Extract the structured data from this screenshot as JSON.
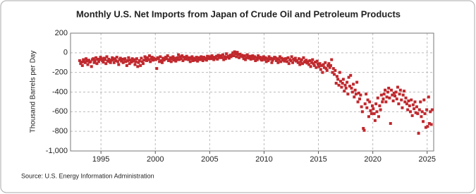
{
  "chart_data": {
    "type": "scatter",
    "title": "Monthly U.S. Net Imports from Japan of Crude Oil and Petroleum Products",
    "y_label": "Thousand Barrels per Day",
    "source": "Source: U.S. Energy Information Administration",
    "color": "#c0282d",
    "grid": true,
    "xlim": [
      1992.2,
      2025.6
    ],
    "xticks": [
      1995,
      2000,
      2005,
      2010,
      2015,
      2020,
      2025
    ],
    "ylim": [
      -1000,
      200
    ],
    "yticks": [
      200,
      0,
      -200,
      -400,
      -600,
      -800,
      {
        "value": -1000,
        "label": "-1,000"
      }
    ],
    "x": [
      1993.04,
      1993.13,
      1993.21,
      1993.29,
      1993.38,
      1993.46,
      1993.54,
      1993.63,
      1993.71,
      1993.79,
      1993.88,
      1993.96,
      1994.04,
      1994.13,
      1994.21,
      1994.29,
      1994.38,
      1994.46,
      1994.54,
      1994.63,
      1994.71,
      1994.79,
      1994.88,
      1994.96,
      1995.04,
      1995.13,
      1995.21,
      1995.29,
      1995.38,
      1995.46,
      1995.54,
      1995.63,
      1995.71,
      1995.79,
      1995.88,
      1995.96,
      1996.04,
      1996.13,
      1996.21,
      1996.29,
      1996.38,
      1996.46,
      1996.54,
      1996.63,
      1996.71,
      1996.79,
      1996.88,
      1996.96,
      1997.04,
      1997.13,
      1997.21,
      1997.29,
      1997.38,
      1997.46,
      1997.54,
      1997.63,
      1997.71,
      1997.79,
      1997.88,
      1997.96,
      1998.04,
      1998.13,
      1998.21,
      1998.29,
      1998.38,
      1998.46,
      1998.54,
      1998.63,
      1998.71,
      1998.79,
      1998.88,
      1998.96,
      1999.04,
      1999.13,
      1999.21,
      1999.29,
      1999.38,
      1999.46,
      1999.54,
      1999.63,
      1999.71,
      1999.79,
      1999.88,
      1999.96,
      2000.04,
      2000.13,
      2000.21,
      2000.29,
      2000.38,
      2000.46,
      2000.54,
      2000.63,
      2000.71,
      2000.79,
      2000.88,
      2000.96,
      2001.04,
      2001.13,
      2001.21,
      2001.29,
      2001.38,
      2001.46,
      2001.54,
      2001.63,
      2001.71,
      2001.79,
      2001.88,
      2001.96,
      2002.04,
      2002.13,
      2002.21,
      2002.29,
      2002.38,
      2002.46,
      2002.54,
      2002.63,
      2002.71,
      2002.79,
      2002.88,
      2002.96,
      2003.04,
      2003.13,
      2003.21,
      2003.29,
      2003.38,
      2003.46,
      2003.54,
      2003.63,
      2003.71,
      2003.79,
      2003.88,
      2003.96,
      2004.04,
      2004.13,
      2004.21,
      2004.29,
      2004.38,
      2004.46,
      2004.54,
      2004.63,
      2004.71,
      2004.79,
      2004.88,
      2004.96,
      2005.04,
      2005.13,
      2005.21,
      2005.29,
      2005.38,
      2005.46,
      2005.54,
      2005.63,
      2005.71,
      2005.79,
      2005.88,
      2005.96,
      2006.04,
      2006.13,
      2006.21,
      2006.29,
      2006.38,
      2006.46,
      2006.54,
      2006.63,
      2006.71,
      2006.79,
      2006.88,
      2006.96,
      2007.04,
      2007.13,
      2007.21,
      2007.29,
      2007.38,
      2007.46,
      2007.54,
      2007.63,
      2007.71,
      2007.79,
      2007.88,
      2007.96,
      2008.04,
      2008.13,
      2008.21,
      2008.29,
      2008.38,
      2008.46,
      2008.54,
      2008.63,
      2008.71,
      2008.79,
      2008.88,
      2008.96,
      2009.04,
      2009.13,
      2009.21,
      2009.29,
      2009.38,
      2009.46,
      2009.54,
      2009.63,
      2009.71,
      2009.79,
      2009.88,
      2009.96,
      2010.04,
      2010.13,
      2010.21,
      2010.29,
      2010.38,
      2010.46,
      2010.54,
      2010.63,
      2010.71,
      2010.79,
      2010.88,
      2010.96,
      2011.04,
      2011.13,
      2011.21,
      2011.29,
      2011.38,
      2011.46,
      2011.54,
      2011.63,
      2011.71,
      2011.79,
      2011.88,
      2011.96,
      2012.04,
      2012.13,
      2012.21,
      2012.29,
      2012.38,
      2012.46,
      2012.54,
      2012.63,
      2012.71,
      2012.79,
      2012.88,
      2012.96,
      2013.04,
      2013.13,
      2013.21,
      2013.29,
      2013.38,
      2013.46,
      2013.54,
      2013.63,
      2013.71,
      2013.79,
      2013.88,
      2013.96,
      2014.04,
      2014.13,
      2014.21,
      2014.29,
      2014.38,
      2014.46,
      2014.54,
      2014.63,
      2014.71,
      2014.79,
      2014.88,
      2014.96,
      2015.04,
      2015.13,
      2015.21,
      2015.29,
      2015.38,
      2015.46,
      2015.54,
      2015.63,
      2015.71,
      2015.79,
      2015.88,
      2015.96,
      2016.04,
      2016.13,
      2016.21,
      2016.29,
      2016.38,
      2016.46,
      2016.54,
      2016.63,
      2016.71,
      2016.79,
      2016.88,
      2016.96,
      2017.04,
      2017.13,
      2017.21,
      2017.29,
      2017.38,
      2017.46,
      2017.54,
      2017.63,
      2017.71,
      2017.79,
      2017.88,
      2017.96,
      2018.04,
      2018.13,
      2018.21,
      2018.29,
      2018.38,
      2018.46,
      2018.54,
      2018.63,
      2018.71,
      2018.79,
      2018.88,
      2018.96,
      2019.04,
      2019.13,
      2019.21,
      2019.29,
      2019.38,
      2019.46,
      2019.54,
      2019.63,
      2019.71,
      2019.79,
      2019.88,
      2019.96,
      2020.04,
      2020.13,
      2020.21,
      2020.29,
      2020.38,
      2020.46,
      2020.54,
      2020.63,
      2020.71,
      2020.79,
      2020.88,
      2020.96,
      2021.04,
      2021.13,
      2021.21,
      2021.29,
      2021.38,
      2021.46,
      2021.54,
      2021.63,
      2021.71,
      2021.79,
      2021.88,
      2021.96,
      2022.04,
      2022.13,
      2022.21,
      2022.29,
      2022.38,
      2022.46,
      2022.54,
      2022.63,
      2022.71,
      2022.79,
      2022.88,
      2022.96,
      2023.04,
      2023.13,
      2023.21,
      2023.29,
      2023.38,
      2023.46,
      2023.54,
      2023.63,
      2023.71,
      2023.79,
      2023.88,
      2023.96,
      2024.04,
      2024.13,
      2024.21,
      2024.29,
      2024.38,
      2024.46,
      2024.54,
      2024.63,
      2024.71,
      2024.79,
      2024.88,
      2024.96,
      2025.04,
      2025.13,
      2025.21,
      2025.29,
      2025.38,
      2025.46
    ],
    "values": [
      -80,
      -110,
      -95,
      -130,
      -70,
      -90,
      -100,
      -60,
      -85,
      -120,
      -75,
      -95,
      -90,
      -140,
      -70,
      -60,
      -100,
      -80,
      -50,
      -110,
      -65,
      -90,
      -70,
      -45,
      -60,
      -80,
      -95,
      -55,
      -70,
      -110,
      -40,
      -85,
      -65,
      -90,
      -100,
      -75,
      -50,
      -70,
      -100,
      -60,
      -80,
      -45,
      -90,
      -120,
      -70,
      -55,
      -85,
      -65,
      -100,
      -70,
      -60,
      -90,
      -130,
      -80,
      -50,
      -110,
      -75,
      -95,
      -60,
      -85,
      -70,
      -120,
      -90,
      -60,
      -140,
      -100,
      -80,
      -130,
      -55,
      -90,
      -110,
      -75,
      -40,
      -60,
      -80,
      -50,
      -70,
      -30,
      -90,
      -60,
      -45,
      -75,
      -55,
      -65,
      -70,
      -160,
      -50,
      -60,
      -90,
      -40,
      -80,
      -100,
      -55,
      -75,
      -65,
      -45,
      -60,
      -30,
      -80,
      -70,
      -50,
      -90,
      -60,
      -40,
      -75,
      -55,
      -85,
      -70,
      -50,
      -20,
      -70,
      -40,
      -60,
      -30,
      -80,
      -45,
      -55,
      -65,
      -35,
      -50,
      -70,
      -50,
      -90,
      -60,
      -40,
      -80,
      -55,
      -75,
      -65,
      -45,
      -85,
      -60,
      -50,
      -70,
      -40,
      -60,
      -80,
      -45,
      -65,
      -55,
      -75,
      -35,
      -60,
      -50,
      -40,
      -60,
      -30,
      -50,
      -70,
      -45,
      -55,
      -35,
      -65,
      -25,
      -50,
      -40,
      -30,
      -50,
      -20,
      -70,
      -40,
      -60,
      -10,
      -45,
      -35,
      -55,
      -25,
      -40,
      -20,
      0,
      -30,
      10,
      -10,
      -40,
      5,
      -20,
      -50,
      -15,
      -35,
      -25,
      -40,
      -60,
      -30,
      -70,
      -50,
      -20,
      -45,
      -55,
      -35,
      -65,
      -40,
      -30,
      -60,
      -40,
      -80,
      -50,
      -70,
      -30,
      -55,
      -45,
      -65,
      -75,
      -50,
      -40,
      -70,
      -50,
      -90,
      -60,
      -80,
      -40,
      -65,
      -55,
      -100,
      -75,
      -60,
      -45,
      -50,
      -80,
      -60,
      -100,
      -70,
      -40,
      -90,
      -55,
      -75,
      -65,
      -85,
      -60,
      -60,
      -90,
      -50,
      -110,
      -70,
      -80,
      -40,
      -100,
      -65,
      -75,
      -55,
      -85,
      -80,
      -100,
      -60,
      -120,
      -90,
      -70,
      -110,
      -50,
      -95,
      -85,
      -75,
      -105,
      -90,
      -120,
      -80,
      -140,
      -100,
      -70,
      -110,
      -130,
      -95,
      -150,
      -85,
      -115,
      -140,
      -110,
      -170,
      -130,
      -200,
      -120,
      -150,
      -100,
      -160,
      -180,
      -130,
      -110,
      -150,
      -130,
      -70,
      -200,
      -160,
      -220,
      -180,
      -310,
      -240,
      -270,
      -330,
      -200,
      -290,
      -350,
      -310,
      -270,
      -390,
      -330,
      -360,
      -300,
      -420,
      -250,
      -340,
      -230,
      -360,
      -400,
      -320,
      -450,
      -380,
      -420,
      -300,
      -500,
      -410,
      -470,
      -430,
      -550,
      -600,
      -770,
      -790,
      -520,
      -420,
      -560,
      -480,
      -650,
      -500,
      -590,
      -620,
      -540,
      -570,
      -620,
      -690,
      -520,
      -600,
      -460,
      -650,
      -540,
      -580,
      -430,
      -500,
      -470,
      -420,
      -380,
      -500,
      -450,
      -400,
      -360,
      -460,
      -720,
      -380,
      -430,
      -490,
      -410,
      -440,
      -400,
      -470,
      -350,
      -520,
      -420,
      -380,
      -480,
      -560,
      -430,
      -390,
      -500,
      -460,
      -520,
      -580,
      -490,
      -540,
      -600,
      -480,
      -640,
      -530,
      -570,
      -500,
      -610,
      -550,
      -620,
      -820,
      -580,
      -500,
      -650,
      -600,
      -700,
      -480,
      -620,
      -760,
      -580,
      -750,
      -450,
      -720,
      -600,
      -730,
      -580
    ]
  }
}
